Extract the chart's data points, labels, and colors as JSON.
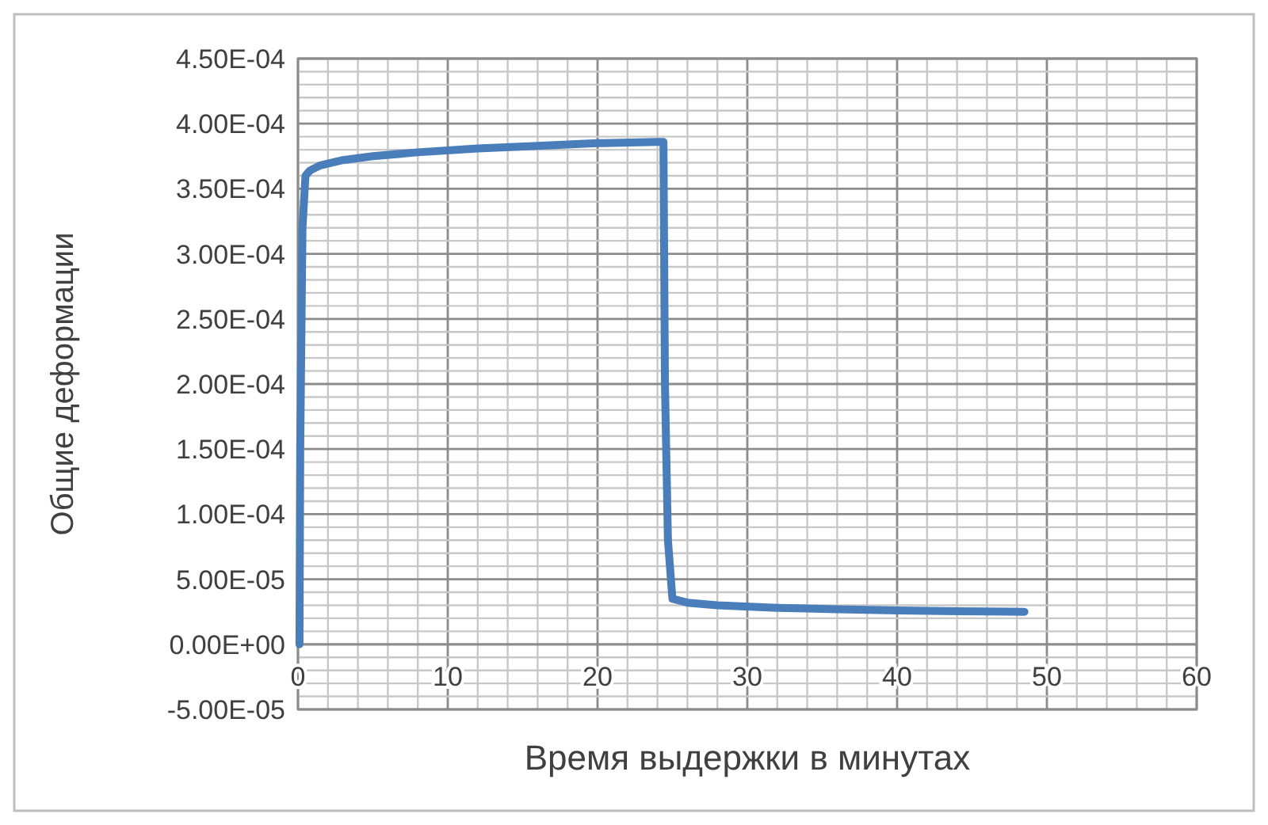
{
  "chart_data": {
    "type": "line",
    "xlabel": "Время выдержки в минутах",
    "ylabel": "Общие деформации",
    "series": [
      {
        "color": "#4a7ebb",
        "x": [
          0.1,
          0.15,
          0.3,
          0.5,
          0.8,
          1.5,
          3,
          5,
          8,
          12,
          16,
          20,
          24,
          24.4,
          24.5,
          24.7,
          25,
          26,
          28,
          32,
          36,
          40,
          44,
          48.5
        ],
        "values": [
          0,
          0.00015,
          0.00032,
          0.00036,
          0.000364,
          0.000368,
          0.000372,
          0.000375,
          0.000378,
          0.000381,
          0.000383,
          0.000385,
          0.000386,
          0.000386,
          0.0002,
          8e-05,
          3.5e-05,
          3.2e-05,
          3e-05,
          2.8e-05,
          2.7e-05,
          2.6e-05,
          2.55e-05,
          2.5e-05
        ]
      }
    ],
    "xlim": [
      0,
      60
    ],
    "ylim": [
      -5e-05,
      0.00045
    ],
    "xticks": [
      0,
      {
        "value": 2,
        "label": null
      },
      {
        "value": 4,
        "label": null
      },
      {
        "value": 6,
        "label": null
      },
      {
        "value": 8,
        "label": null
      },
      10,
      {
        "value": 12,
        "label": null
      },
      {
        "value": 14,
        "label": null
      },
      {
        "value": 16,
        "label": null
      },
      {
        "value": 18,
        "label": null
      },
      20,
      {
        "value": 22,
        "label": null
      },
      {
        "value": 24,
        "label": null
      },
      {
        "value": 26,
        "label": null
      },
      {
        "value": 28,
        "label": null
      },
      30,
      {
        "value": 32,
        "label": null
      },
      {
        "value": 34,
        "label": null
      },
      {
        "value": 36,
        "label": null
      },
      {
        "value": 38,
        "label": null
      },
      40,
      {
        "value": 42,
        "label": null
      },
      {
        "value": 44,
        "label": null
      },
      {
        "value": 46,
        "label": null
      },
      {
        "value": 48,
        "label": null
      },
      50,
      {
        "value": 52,
        "label": null
      },
      {
        "value": 54,
        "label": null
      },
      {
        "value": 56,
        "label": null
      },
      {
        "value": 58,
        "label": null
      },
      60
    ],
    "yticks": [
      {
        "value": -5e-05,
        "label": "-5.00E-05"
      },
      {
        "value": -4e-05,
        "label": null
      },
      {
        "value": -3e-05,
        "label": null
      },
      {
        "value": -2e-05,
        "label": null
      },
      {
        "value": -1e-05,
        "label": null
      },
      {
        "value": 0,
        "label": "0.00E+00"
      },
      {
        "value": 1e-05,
        "label": null
      },
      {
        "value": 2e-05,
        "label": null
      },
      {
        "value": 3e-05,
        "label": null
      },
      {
        "value": 4e-05,
        "label": null
      },
      {
        "value": 5e-05,
        "label": "5.00E-05"
      },
      {
        "value": 6e-05,
        "label": null
      },
      {
        "value": 7e-05,
        "label": null
      },
      {
        "value": 8e-05,
        "label": null
      },
      {
        "value": 9e-05,
        "label": null
      },
      {
        "value": 0.0001,
        "label": "1.00E-04"
      },
      {
        "value": 0.00011,
        "label": null
      },
      {
        "value": 0.00012,
        "label": null
      },
      {
        "value": 0.00013,
        "label": null
      },
      {
        "value": 0.00014,
        "label": null
      },
      {
        "value": 0.00015,
        "label": "1.50E-04"
      },
      {
        "value": 0.00016,
        "label": null
      },
      {
        "value": 0.00017,
        "label": null
      },
      {
        "value": 0.00018,
        "label": null
      },
      {
        "value": 0.00019,
        "label": null
      },
      {
        "value": 0.0002,
        "label": "2.00E-04"
      },
      {
        "value": 0.00021,
        "label": null
      },
      {
        "value": 0.00022,
        "label": null
      },
      {
        "value": 0.00023,
        "label": null
      },
      {
        "value": 0.00024,
        "label": null
      },
      {
        "value": 0.00025,
        "label": "2.50E-04"
      },
      {
        "value": 0.00026,
        "label": null
      },
      {
        "value": 0.00027,
        "label": null
      },
      {
        "value": 0.00028,
        "label": null
      },
      {
        "value": 0.00029,
        "label": null
      },
      {
        "value": 0.0003,
        "label": "3.00E-04"
      },
      {
        "value": 0.00031,
        "label": null
      },
      {
        "value": 0.00032,
        "label": null
      },
      {
        "value": 0.00033,
        "label": null
      },
      {
        "value": 0.00034,
        "label": null
      },
      {
        "value": 0.00035,
        "label": "3.50E-04"
      },
      {
        "value": 0.00036,
        "label": null
      },
      {
        "value": 0.00037,
        "label": null
      },
      {
        "value": 0.00038,
        "label": null
      },
      {
        "value": 0.00039,
        "label": null
      },
      {
        "value": 0.0004,
        "label": "4.00E-04"
      },
      {
        "value": 0.00041,
        "label": null
      },
      {
        "value": 0.00042,
        "label": null
      },
      {
        "value": 0.00043,
        "label": null
      },
      {
        "value": 0.00044,
        "label": null
      },
      {
        "value": 0.00045,
        "label": "4.50E-04"
      }
    ],
    "grid": true,
    "marker": "none",
    "line_style": "solid"
  }
}
